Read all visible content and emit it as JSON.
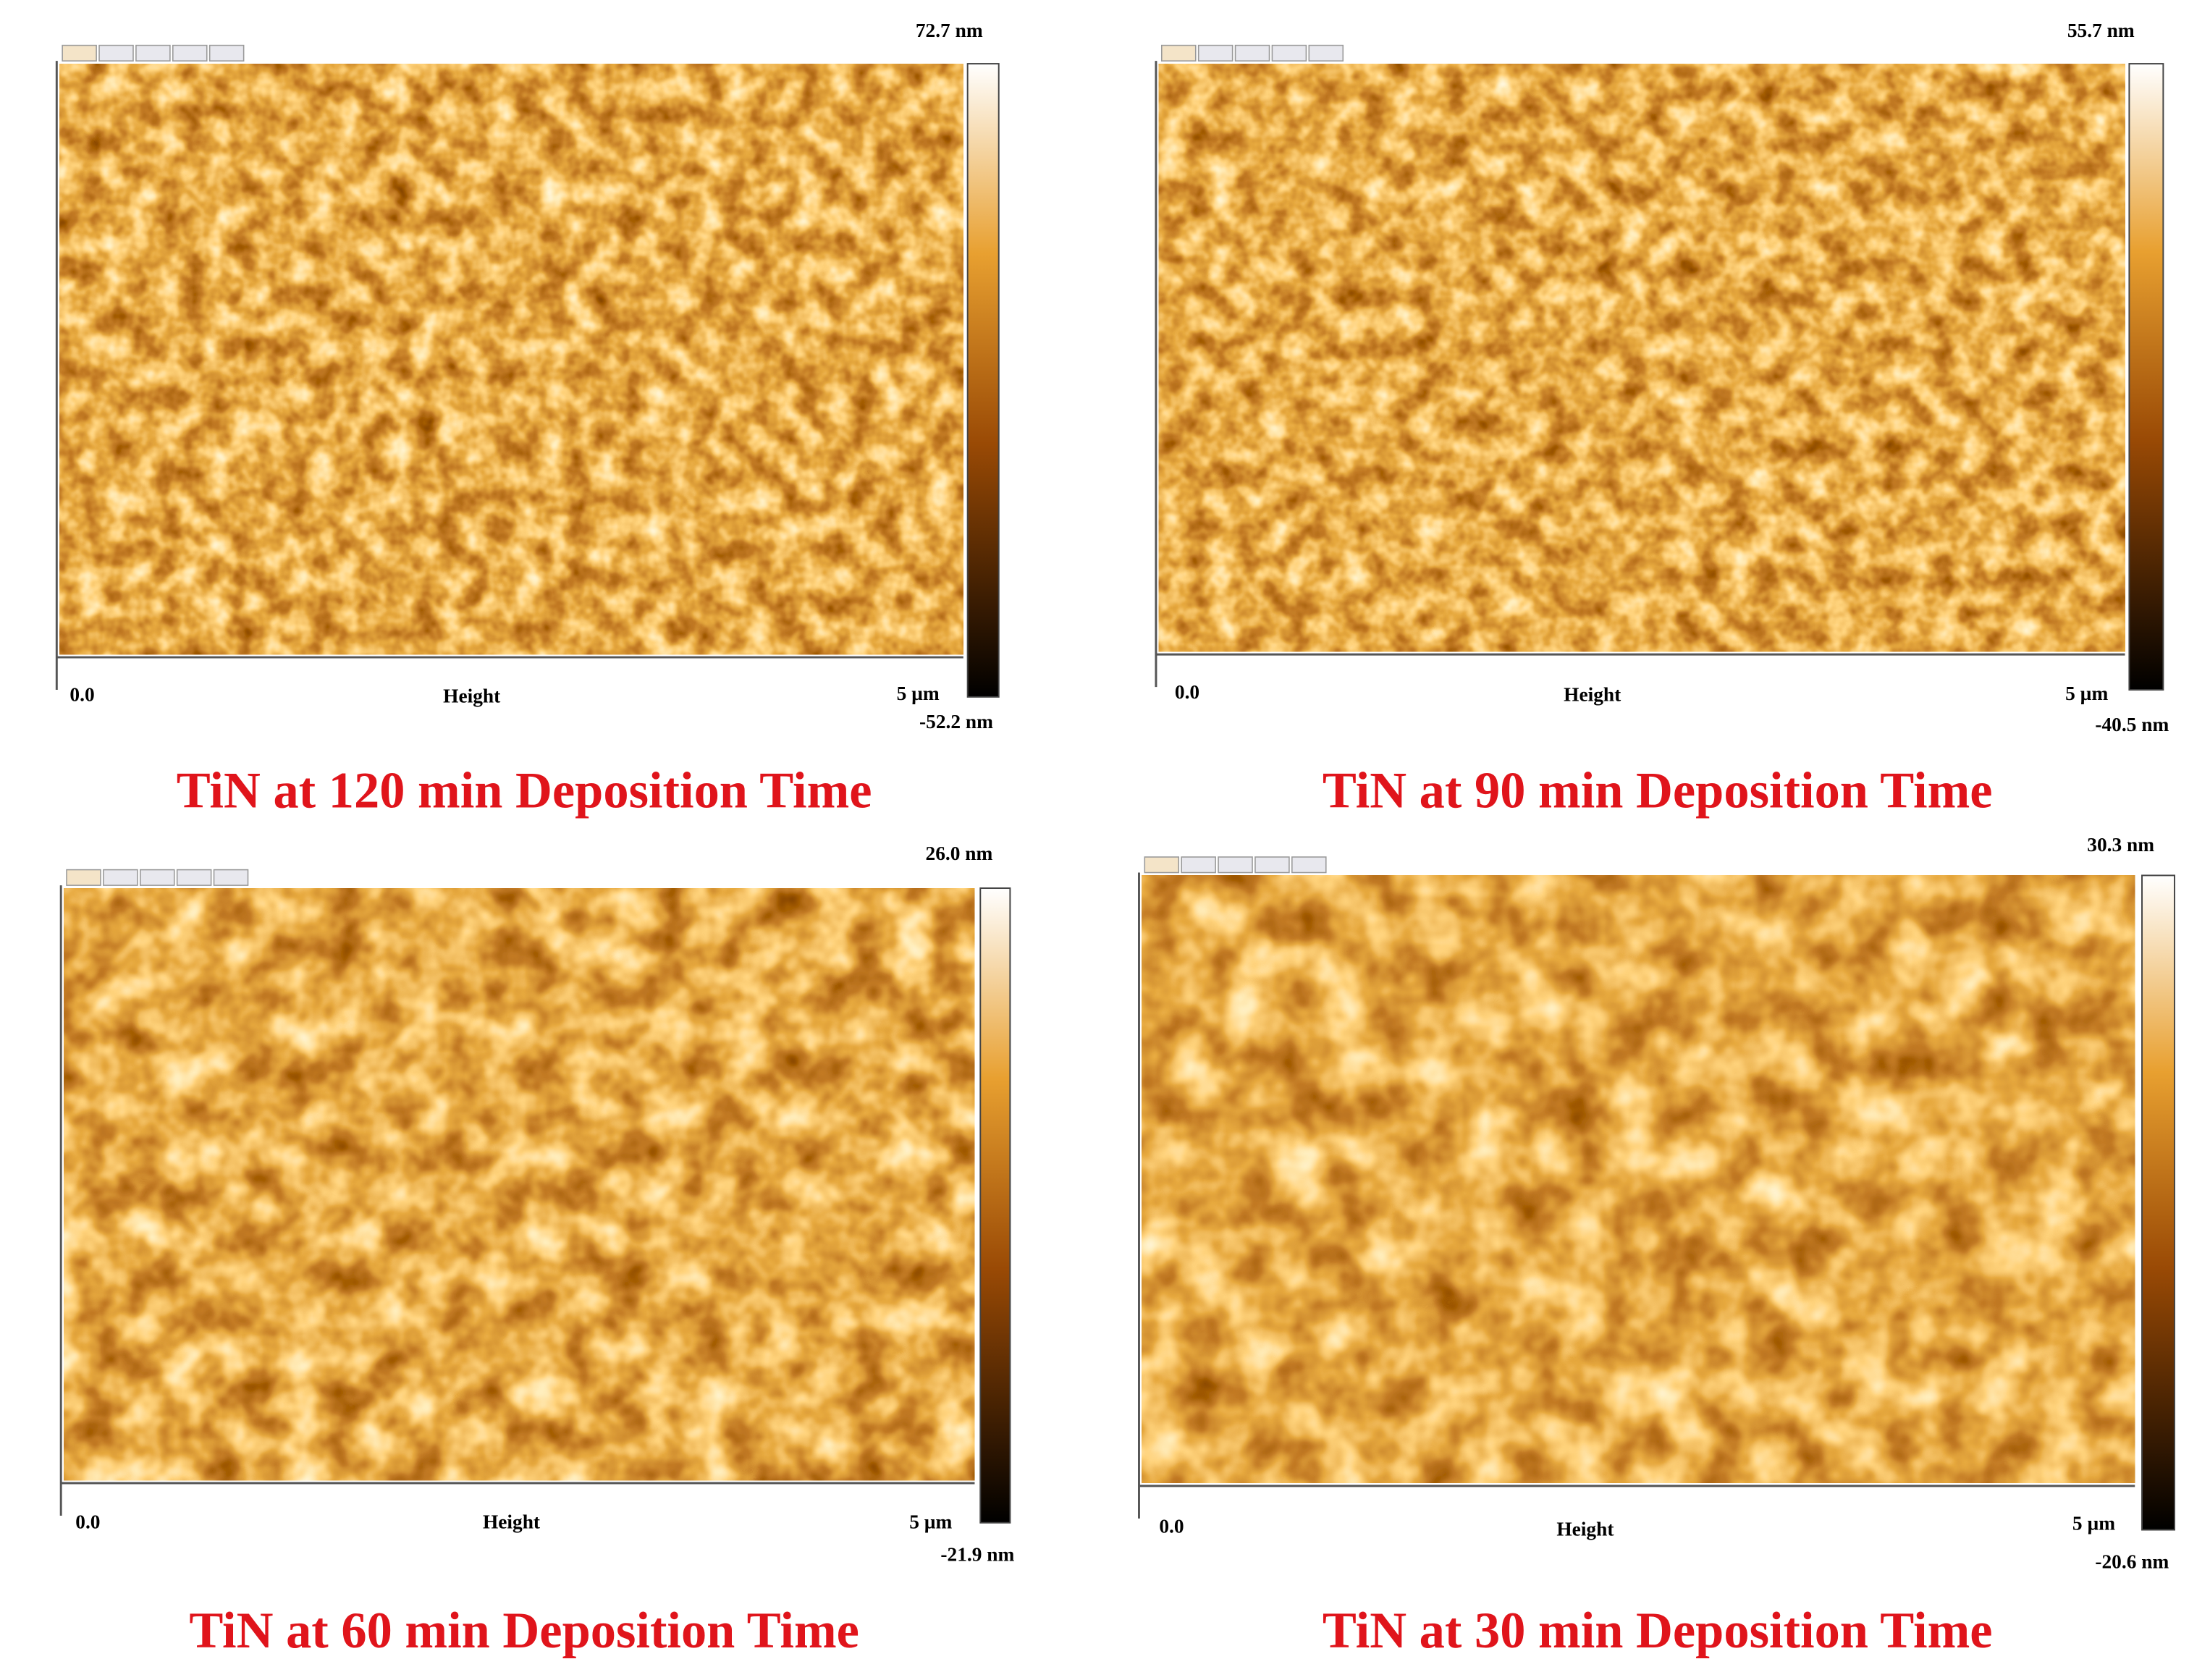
{
  "panels": [
    {
      "top_label": "72.7 nm",
      "bottom_label": "-52.2 nm",
      "x_start": "0.0",
      "axis_label": "Height",
      "x_end": "5 µm",
      "caption": "TiN at 120 min Deposition Time"
    },
    {
      "top_label": "55.7 nm",
      "bottom_label": "-40.5 nm",
      "x_start": "0.0",
      "axis_label": "Height",
      "x_end": "5 µm",
      "caption": "TiN at 90 min Deposition Time"
    },
    {
      "top_label": "26.0 nm",
      "bottom_label": "-21.9 nm",
      "x_start": "0.0",
      "axis_label": "Height",
      "x_end": "5 µm",
      "caption": "TiN at 60 min Deposition Time"
    },
    {
      "top_label": "30.3 nm",
      "bottom_label": "-20.6 nm",
      "x_start": "0.0",
      "axis_label": "Height",
      "x_end": "5 µm",
      "caption": "TiN at 30 min Deposition Time"
    }
  ]
}
